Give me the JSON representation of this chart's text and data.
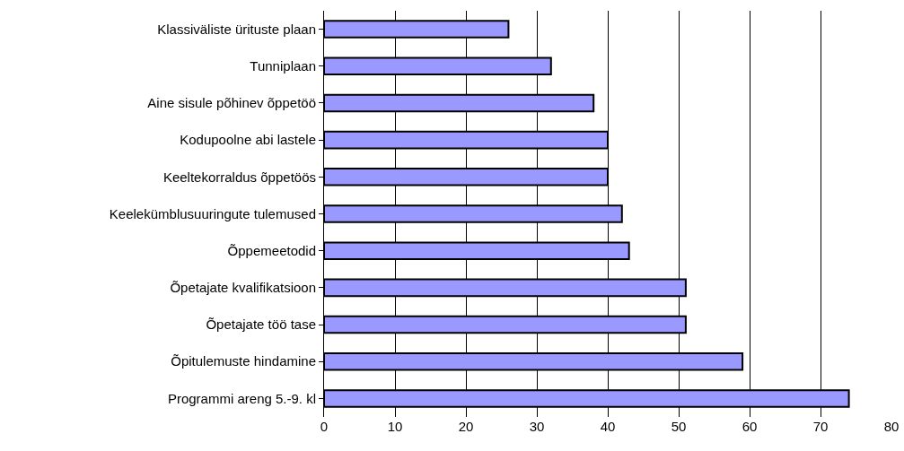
{
  "chart_data": {
    "type": "bar",
    "orientation": "horizontal",
    "categories": [
      "Klassiväliste ürituste plaan",
      "Tunniplaan",
      "Aine sisule põhinev õppetöö",
      "Kodupoolne abi lastele",
      "Keeltekorraldus õppetöös",
      "Keelekümblusuuringute tulemused",
      "Õppemeetodid",
      "Õpetajate kvalifikatsioon",
      "Õpetajate töö tase",
      "Õpitulemuste hindamine",
      "Programmi areng 5.-9. kl"
    ],
    "values": [
      26,
      32,
      38,
      40,
      40,
      42,
      43,
      51,
      51,
      59,
      74
    ],
    "color": "#9999ff",
    "xlim": [
      0,
      80
    ],
    "xticks": [
      0,
      10,
      20,
      30,
      40,
      50,
      60,
      70,
      80
    ],
    "grid": "x"
  }
}
